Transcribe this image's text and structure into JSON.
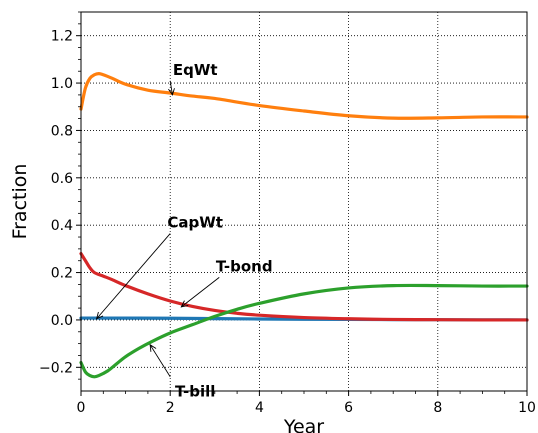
{
  "chart_data": {
    "type": "line",
    "xlabel": "Year",
    "ylabel": "Fraction",
    "xlim": [
      0,
      10
    ],
    "ylim": [
      -0.3,
      1.3
    ],
    "xticks": [
      0,
      2,
      4,
      6,
      8,
      10
    ],
    "yticks": [
      -0.2,
      0.0,
      0.2,
      0.4,
      0.6,
      0.8,
      1.0,
      1.2
    ],
    "xtick_labels": [
      "0",
      "2",
      "4",
      "6",
      "8",
      "10"
    ],
    "ytick_labels": [
      "−0.2",
      "0.0",
      "0.2",
      "0.4",
      "0.6",
      "0.8",
      "1.0",
      "1.2"
    ],
    "grid": true,
    "series": [
      {
        "name": "EqWt",
        "color": "#ff7f0e",
        "x": [
          0,
          0.1,
          0.2,
          0.3,
          0.4,
          0.5,
          0.7,
          1.0,
          1.5,
          2.0,
          2.5,
          3.0,
          4.0,
          5.0,
          6.0,
          7.0,
          8.0,
          9.0,
          10.0
        ],
        "y": [
          0.89,
          0.98,
          1.02,
          1.035,
          1.04,
          1.035,
          1.02,
          0.995,
          0.97,
          0.958,
          0.945,
          0.935,
          0.905,
          0.882,
          0.862,
          0.852,
          0.853,
          0.857,
          0.857
        ]
      },
      {
        "name": "CapWt",
        "color": "#1f77b4",
        "x": [
          0,
          2,
          4,
          6,
          8,
          10
        ],
        "y": [
          0.008,
          0.007,
          0.004,
          0.002,
          0.001,
          0.0
        ]
      },
      {
        "name": "T-bond",
        "color": "#d62728",
        "x": [
          0,
          0.1,
          0.2,
          0.3,
          0.5,
          0.7,
          1.0,
          1.5,
          2.0,
          2.5,
          3.0,
          3.5,
          4.0,
          5.0,
          6.0,
          7.0,
          8.0,
          9.0,
          10.0
        ],
        "y": [
          0.28,
          0.25,
          0.22,
          0.2,
          0.185,
          0.17,
          0.145,
          0.11,
          0.08,
          0.057,
          0.04,
          0.028,
          0.02,
          0.01,
          0.005,
          0.002,
          0.001,
          0.0,
          0.0
        ]
      },
      {
        "name": "T-bill",
        "color": "#2ca02c",
        "x": [
          0,
          0.1,
          0.2,
          0.3,
          0.4,
          0.6,
          0.8,
          1.0,
          1.3,
          1.6,
          2.0,
          2.5,
          3.0,
          3.5,
          4.0,
          5.0,
          6.0,
          7.0,
          8.0,
          9.0,
          10.0
        ],
        "y": [
          -0.18,
          -0.22,
          -0.235,
          -0.24,
          -0.235,
          -0.215,
          -0.185,
          -0.155,
          -0.12,
          -0.09,
          -0.055,
          -0.02,
          0.015,
          0.045,
          0.07,
          0.11,
          0.135,
          0.145,
          0.145,
          0.143,
          0.143
        ]
      }
    ],
    "annotations": [
      {
        "text": "EqWt",
        "x": 2.0,
        "y": 1.035,
        "arrow_x": 2.05,
        "arrow_y": 0.95
      },
      {
        "text": "CapWt",
        "x": 2.0,
        "y": 0.39,
        "arrow_x": 0.35,
        "arrow_y": 0.005
      },
      {
        "text": "T-bond",
        "x": 3.1,
        "y": 0.205,
        "arrow_x": 2.25,
        "arrow_y": 0.055
      },
      {
        "text": "T-bill",
        "x": 2.0,
        "y": -0.265,
        "arrow_x": 1.55,
        "arrow_y": -0.105
      }
    ]
  }
}
